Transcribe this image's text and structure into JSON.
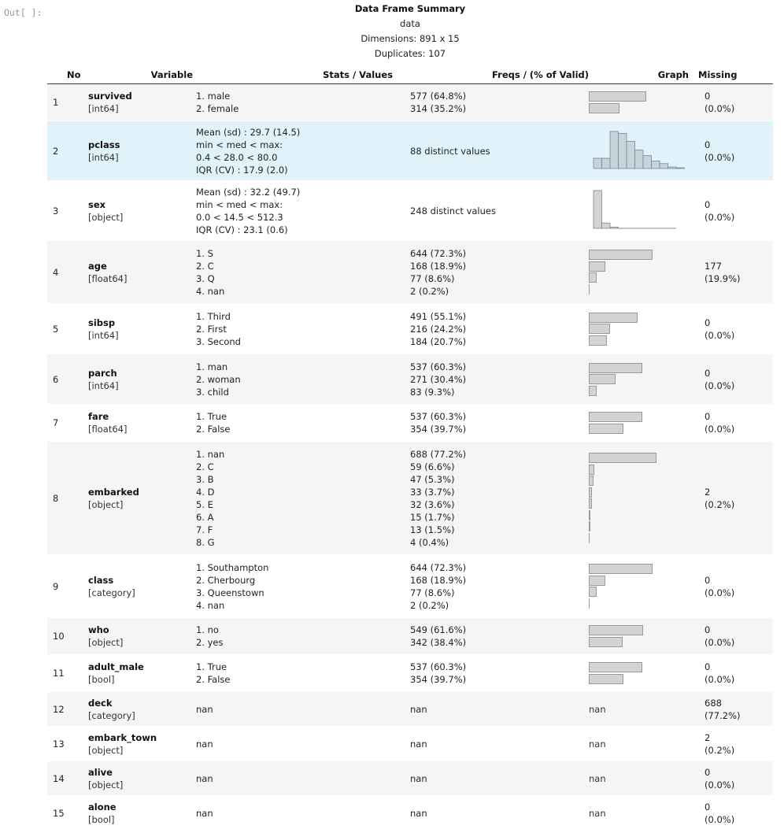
{
  "prompt": "Out[ ]:",
  "header": {
    "title": "Data Frame Summary",
    "name": "data",
    "dimensions": "Dimensions: 891 x 15",
    "duplicates": "Duplicates: 107"
  },
  "columns": [
    "No",
    "Variable",
    "Stats / Values",
    "Freqs / (% of Valid)",
    "Graph",
    "Missing"
  ],
  "rows": [
    {
      "no": "1",
      "name": "survived",
      "dtype": "[int64]",
      "stats": [
        "1. male",
        "2. female"
      ],
      "freqs": [
        "577 (64.8%)",
        "314 (35.2%)"
      ],
      "graph": {
        "kind": "bars",
        "fracs": [
          0.648,
          0.352
        ]
      },
      "missing": [
        "0",
        "(0.0%)"
      ]
    },
    {
      "no": "2",
      "name": "pclass",
      "dtype": "[int64]",
      "stats": [
        "Mean (sd) : 29.7 (14.5)",
        "min < med < max:",
        "0.4 < 28.0 < 80.0",
        "IQR (CV) : 17.9 (2.0)"
      ],
      "freqs": [
        "88 distinct values"
      ],
      "graph": {
        "kind": "hist",
        "fracs": [
          0.27,
          0.27,
          0.98,
          0.93,
          0.72,
          0.49,
          0.34,
          0.2,
          0.13,
          0.04,
          0.02
        ]
      },
      "missing": [
        "0",
        "(0.0%)"
      ]
    },
    {
      "no": "3",
      "name": "sex",
      "dtype": "[object]",
      "stats": [
        "Mean (sd) : 32.2 (49.7)",
        "min < med < max:",
        "0.0 < 14.5 < 512.3",
        "IQR (CV) : 23.1 (0.6)"
      ],
      "freqs": [
        "248 distinct values"
      ],
      "graph": {
        "kind": "hist",
        "fracs": [
          1.0,
          0.14,
          0.03,
          0.0,
          0.0,
          0.01,
          0.0,
          0.0,
          0.0,
          0.0
        ]
      },
      "missing": [
        "0",
        "(0.0%)"
      ]
    },
    {
      "no": "4",
      "name": "age",
      "dtype": "[float64]",
      "stats": [
        "1. S",
        "2. C",
        "3. Q",
        "4. nan"
      ],
      "freqs": [
        "644 (72.3%)",
        "168 (18.9%)",
        "77 (8.6%)",
        "2 (0.2%)"
      ],
      "graph": {
        "kind": "bars",
        "fracs": [
          0.723,
          0.189,
          0.086,
          0.002
        ]
      },
      "missing": [
        "177",
        "(19.9%)"
      ]
    },
    {
      "no": "5",
      "name": "sibsp",
      "dtype": "[int64]",
      "stats": [
        "1. Third",
        "2. First",
        "3. Second"
      ],
      "freqs": [
        "491 (55.1%)",
        "216 (24.2%)",
        "184 (20.7%)"
      ],
      "graph": {
        "kind": "bars",
        "fracs": [
          0.551,
          0.242,
          0.207
        ]
      },
      "missing": [
        "0",
        "(0.0%)"
      ]
    },
    {
      "no": "6",
      "name": "parch",
      "dtype": "[int64]",
      "stats": [
        "1. man",
        "2. woman",
        "3. child"
      ],
      "freqs": [
        "537 (60.3%)",
        "271 (30.4%)",
        "83 (9.3%)"
      ],
      "graph": {
        "kind": "bars",
        "fracs": [
          0.603,
          0.304,
          0.093
        ]
      },
      "missing": [
        "0",
        "(0.0%)"
      ]
    },
    {
      "no": "7",
      "name": "fare",
      "dtype": "[float64]",
      "stats": [
        "1. True",
        "2. False"
      ],
      "freqs": [
        "537 (60.3%)",
        "354 (39.7%)"
      ],
      "graph": {
        "kind": "bars",
        "fracs": [
          0.603,
          0.397
        ]
      },
      "missing": [
        "0",
        "(0.0%)"
      ]
    },
    {
      "no": "8",
      "name": "embarked",
      "dtype": "[object]",
      "stats": [
        "1. nan",
        "2. C",
        "3. B",
        "4. D",
        "5. E",
        "6. A",
        "7. F",
        "8. G"
      ],
      "freqs": [
        "688 (77.2%)",
        "59 (6.6%)",
        "47 (5.3%)",
        "33 (3.7%)",
        "32 (3.6%)",
        "15 (1.7%)",
        "13 (1.5%)",
        "4 (0.4%)"
      ],
      "graph": {
        "kind": "bars",
        "fracs": [
          0.772,
          0.066,
          0.053,
          0.037,
          0.036,
          0.017,
          0.015,
          0.004
        ]
      },
      "missing": [
        "2",
        "(0.2%)"
      ]
    },
    {
      "no": "9",
      "name": "class",
      "dtype": "[category]",
      "stats": [
        "1. Southampton",
        "2. Cherbourg",
        "3. Queenstown",
        "4. nan"
      ],
      "freqs": [
        "644 (72.3%)",
        "168 (18.9%)",
        "77 (8.6%)",
        "2 (0.2%)"
      ],
      "graph": {
        "kind": "bars",
        "fracs": [
          0.723,
          0.189,
          0.086,
          0.002
        ]
      },
      "missing": [
        "0",
        "(0.0%)"
      ]
    },
    {
      "no": "10",
      "name": "who",
      "dtype": "[object]",
      "stats": [
        "1. no",
        "2. yes"
      ],
      "freqs": [
        "549 (61.6%)",
        "342 (38.4%)"
      ],
      "graph": {
        "kind": "bars",
        "fracs": [
          0.616,
          0.384
        ]
      },
      "missing": [
        "0",
        "(0.0%)"
      ]
    },
    {
      "no": "11",
      "name": "adult_male",
      "dtype": "[bool]",
      "stats": [
        "1. True",
        "2. False"
      ],
      "freqs": [
        "537 (60.3%)",
        "354 (39.7%)"
      ],
      "graph": {
        "kind": "bars",
        "fracs": [
          0.603,
          0.397
        ]
      },
      "missing": [
        "0",
        "(0.0%)"
      ]
    },
    {
      "no": "12",
      "name": "deck",
      "dtype": "[category]",
      "stats": [
        "nan"
      ],
      "freqs": [
        "nan"
      ],
      "graph": {
        "kind": "text",
        "text": "nan"
      },
      "missing": [
        "688",
        "(77.2%)"
      ]
    },
    {
      "no": "13",
      "name": "embark_town",
      "dtype": "[object]",
      "stats": [
        "nan"
      ],
      "freqs": [
        "nan"
      ],
      "graph": {
        "kind": "text",
        "text": "nan"
      },
      "missing": [
        "2",
        "(0.2%)"
      ]
    },
    {
      "no": "14",
      "name": "alive",
      "dtype": "[object]",
      "stats": [
        "nan"
      ],
      "freqs": [
        "nan"
      ],
      "graph": {
        "kind": "text",
        "text": "nan"
      },
      "missing": [
        "0",
        "(0.0%)"
      ]
    },
    {
      "no": "15",
      "name": "alone",
      "dtype": "[bool]",
      "stats": [
        "nan"
      ],
      "freqs": [
        "nan"
      ],
      "graph": {
        "kind": "text",
        "text": "nan"
      },
      "missing": [
        "0",
        "(0.0%)"
      ]
    }
  ],
  "colors": {
    "highlight": "#e0f3fb",
    "stripe": "#f5f5f5",
    "bar_fill": "#d3d3d3",
    "hist_fill": "#c8d4dc"
  }
}
